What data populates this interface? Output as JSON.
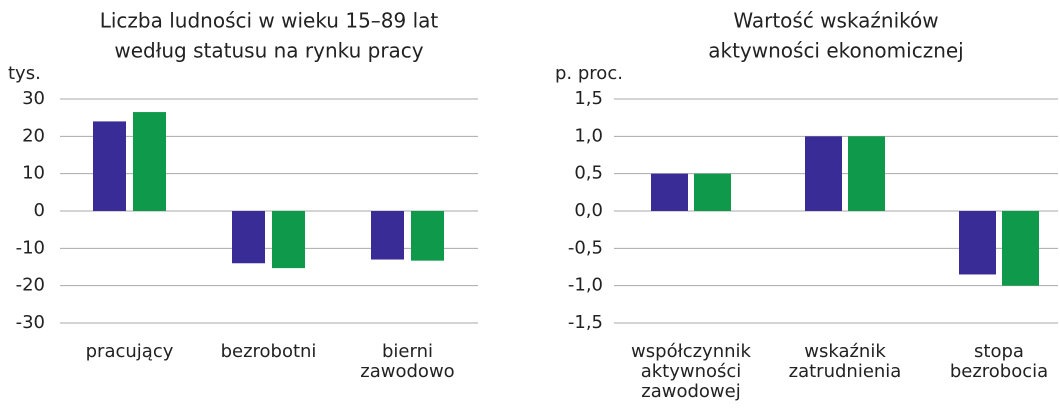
{
  "chart_data": [
    {
      "type": "bar",
      "title": [
        "Liczba ludności w wieku 15–89 lat",
        "według statusu na rynku pracy"
      ],
      "y_label": "tys.",
      "categories": [
        "pracujący",
        "bezrobotni",
        "bierni zawodowo"
      ],
      "series": [
        {
          "color": "#3a2c97",
          "values": [
            24,
            -14,
            -13
          ]
        },
        {
          "color": "#0e9a4a",
          "values": [
            26.5,
            -15.3,
            -13.3
          ]
        }
      ],
      "ylim": [
        -30,
        30
      ],
      "yticks": [
        -30,
        -20,
        -10,
        0,
        10,
        20,
        30
      ],
      "grid": true
    },
    {
      "type": "bar",
      "title": [
        "Wartość wskaźników",
        "aktywności ekonomicznej"
      ],
      "y_label": "p. proc.",
      "categories": [
        "współczynnik aktywności zawodowej",
        "wskaźnik zatrudnienia",
        "stopa bezrobocia"
      ],
      "series": [
        {
          "color": "#3a2c97",
          "values": [
            0.5,
            1.0,
            -0.85
          ]
        },
        {
          "color": "#0e9a4a",
          "values": [
            0.5,
            1.0,
            -1.0
          ]
        }
      ],
      "ylim": [
        -1.5,
        1.5
      ],
      "yticks": [
        {
          "value": -1.5,
          "label": "-1,5"
        },
        {
          "value": -1.0,
          "label": "-1,0"
        },
        {
          "value": -0.5,
          "label": "-0,5"
        },
        {
          "value": 0.0,
          "label": "0,0"
        },
        {
          "value": 0.5,
          "label": "0,5"
        },
        {
          "value": 1.0,
          "label": "1,0"
        },
        {
          "value": 1.5,
          "label": "1,5"
        }
      ],
      "grid": true
    }
  ]
}
